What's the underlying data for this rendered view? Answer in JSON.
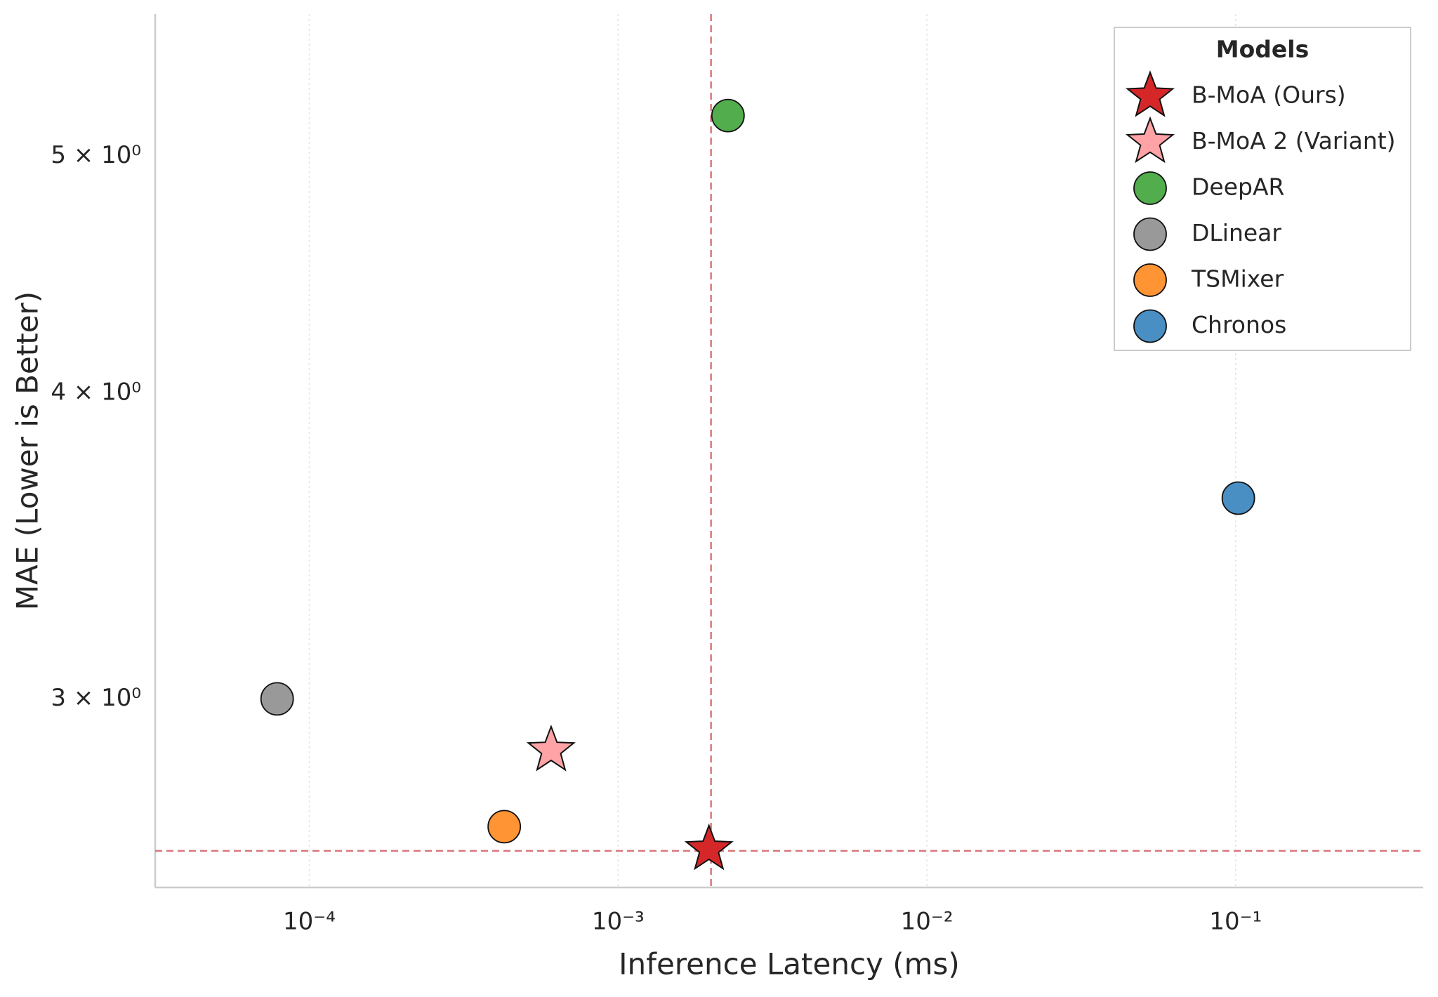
{
  "chart_data": {
    "type": "scatter",
    "x_label": "Inference Latency (ms)",
    "y_label": "MAE (Lower is Better)",
    "xscale": "log",
    "yscale": "log",
    "xlim": [
      3.17e-05,
      0.405
    ],
    "ylim": [
      2.512,
      5.716
    ],
    "xticks": [
      {
        "value": 0.0001,
        "label": "10⁻⁴"
      },
      {
        "value": 0.001,
        "label": "10⁻³"
      },
      {
        "value": 0.01,
        "label": "10⁻²"
      },
      {
        "value": 0.1,
        "label": "10⁻¹"
      }
    ],
    "yticks": [
      {
        "value": 3,
        "label": "3 × 10⁰"
      },
      {
        "value": 4,
        "label": "4 × 10⁰"
      },
      {
        "value": 5,
        "label": "5 × 10⁰"
      }
    ],
    "grid": "x",
    "legend_title": "Models",
    "legend": "upper right",
    "reference_lines": {
      "x": 0.002,
      "y": 2.6,
      "color": "#d9777c"
    },
    "series": [
      {
        "name": "B-MoA (Ours)",
        "color": "#d62728",
        "marker": "star",
        "x": [
          0.00197
        ],
        "values": [
          2.604
        ]
      },
      {
        "name": "B-MoA 2 (Variant)",
        "color": "#ffa3a6",
        "marker": "star",
        "x": [
          0.000607
        ],
        "values": [
          2.858
        ]
      },
      {
        "name": "DeepAR",
        "color": "#52ad4c",
        "marker": "circle",
        "x": [
          0.00227
        ],
        "values": [
          5.195
        ]
      },
      {
        "name": "DLinear",
        "color": "#999999",
        "marker": "circle",
        "x": [
          7.87e-05
        ],
        "values": [
          3.0
        ]
      },
      {
        "name": "TSMixer",
        "color": "#ff9435",
        "marker": "circle",
        "x": [
          0.000428
        ],
        "values": [
          2.66
        ]
      },
      {
        "name": "Chronos",
        "color": "#4a8fc4",
        "marker": "circle",
        "x": [
          0.102
        ],
        "values": [
          3.624
        ]
      }
    ]
  }
}
